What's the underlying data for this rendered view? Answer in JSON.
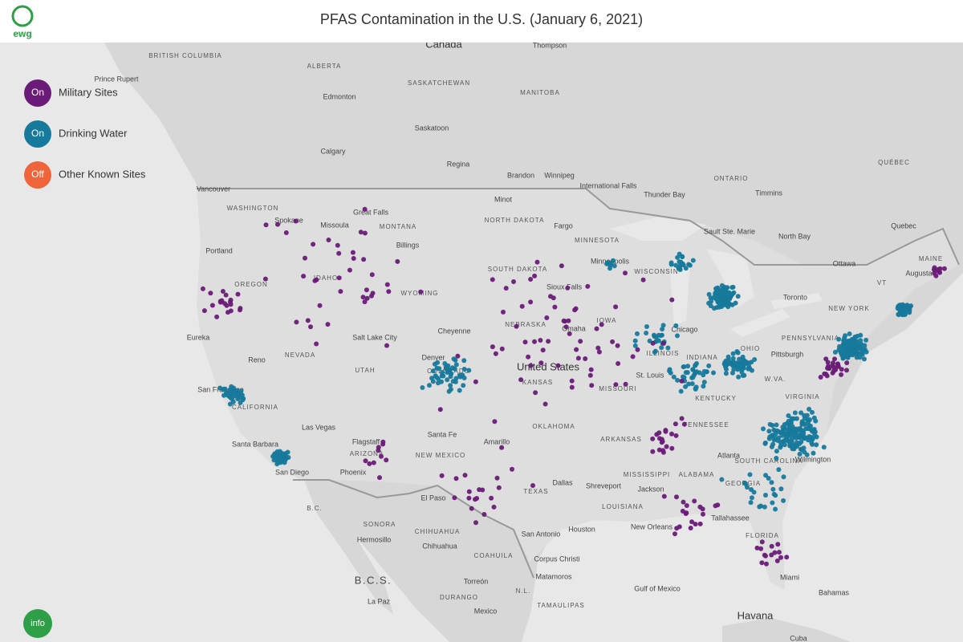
{
  "header": {
    "logo": "ewg",
    "title": "PFAS Contamination in the U.S. (January 6, 2021)"
  },
  "layers": [
    {
      "state": "On",
      "label": "Military Sites",
      "color": "#6a1b78"
    },
    {
      "state": "On",
      "label": "Drinking Water",
      "color": "#17799b"
    },
    {
      "state": "Off",
      "label": "Other Known Sites",
      "color": "#f0643c"
    }
  ],
  "info": "info",
  "map": {
    "labels": [
      "Canada",
      "Thompson",
      "BRITISH COLUMBIA",
      "ALBERTA",
      "Prince Rupert",
      "SASKATCHEWAN",
      "MANITOBA",
      "Edmonton",
      "Saskatoon",
      "Calgary",
      "Regina",
      "Brandon",
      "Winnipeg",
      "International Falls",
      "Thunder Bay",
      "ONTARIO",
      "Timmins",
      "QUÉBEC",
      "Vancouver",
      "WASHINGTON",
      "Spokane",
      "Great Falls",
      "MONTANA",
      "Missoula",
      "Minot",
      "NORTH DAKOTA",
      "Fargo",
      "Billings",
      "MINNESOTA",
      "Sault Ste. Marie",
      "North Bay",
      "Quebec",
      "Portland",
      "OREGON",
      "IDAHO",
      "SOUTH DAKOTA",
      "Minneapolis",
      "WISCONSIN",
      "Ottawa",
      "MAINE",
      "Augusta",
      "WYOMING",
      "Sioux Falls",
      "Toronto",
      "NEW YORK",
      "VT",
      "IOWA",
      "NEBRASKA",
      "Eureka",
      "Salt Lake City",
      "Cheyenne",
      "Omaha",
      "Chicago",
      "PENNSYLVANIA",
      "NEVADA",
      "Reno",
      "UTAH",
      "COLORADO",
      "Denver",
      "United States",
      "KANSAS",
      "ILLINOIS",
      "INDIANA",
      "OHIO",
      "Pittsburgh",
      "St. Louis",
      "MISSOURI",
      "W.VA.",
      "San Francisco",
      "KENTUCKY",
      "VIRGINIA",
      "CALIFORNIA",
      "TENNESSEE",
      "OKLAHOMA",
      "ARKANSAS",
      "Las Vegas",
      "Santa Fe",
      "Flagstaff",
      "ARIZONA",
      "NEW MEXICO",
      "Amarillo",
      "Santa Barbara",
      "Atlanta",
      "SOUTH CAROLINA",
      "Wilmington",
      "Phoenix",
      "San Diego",
      "MISSISSIPPI",
      "ALABAMA",
      "GEORGIA",
      "Dallas",
      "Shreveport",
      "Jackson",
      "TEXAS",
      "El Paso",
      "B.C.",
      "LOUISIANA",
      "Tallahassee",
      "SONORA",
      "Houston",
      "New Orleans",
      "San Antonio",
      "Hermosillo",
      "CHIHUAHUA",
      "Chihuahua",
      "FLORIDA",
      "COAHUILA",
      "Corpus Christi",
      "Miami",
      "Matamoros",
      "Gulf of Mexico",
      "B.C.S.",
      "Torreón",
      "N.L.",
      "La Paz",
      "DURANGO",
      "TAMAULIPAS",
      "Bahamas",
      "Mexico",
      "Havana",
      "Cuba"
    ]
  }
}
